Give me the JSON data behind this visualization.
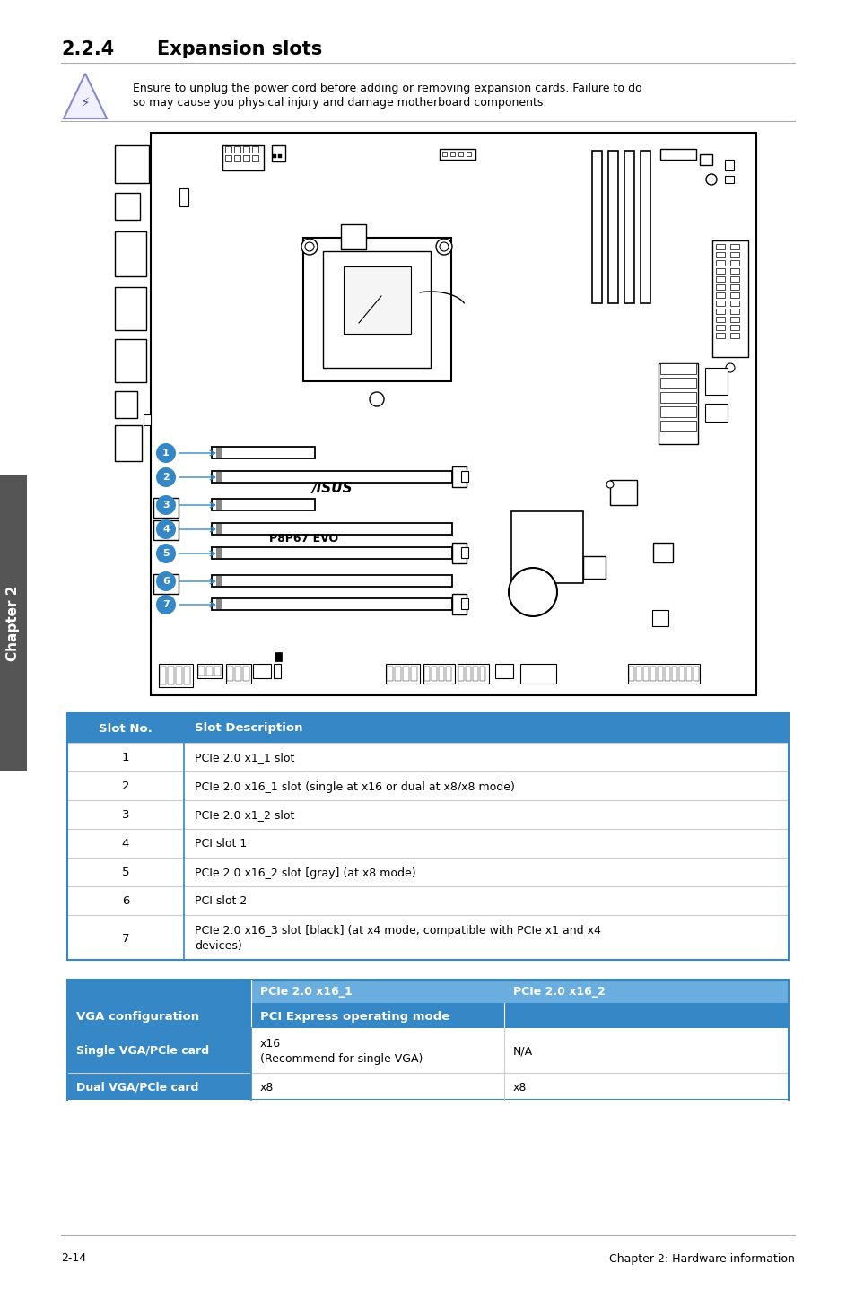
{
  "title_section": "2.2.4",
  "title_text": "Expansion slots",
  "warning_text_line1": "Ensure to unplug the power cord before adding or removing expansion cards. Failure to do",
  "warning_text_line2": "so may cause you physical injury and damage motherboard components.",
  "slot_table_header": [
    "Slot No.",
    "Slot Description"
  ],
  "slot_rows": [
    [
      "1",
      "PCIe 2.0 x1_1 slot"
    ],
    [
      "2",
      "PCIe 2.0 x16_1 slot (single at x16 or dual at x8/x8 mode)"
    ],
    [
      "3",
      "PCIe 2.0 x1_2 slot"
    ],
    [
      "4",
      "PCI slot 1"
    ],
    [
      "5",
      "PCIe 2.0 x16_2 slot [gray] (at x8 mode)"
    ],
    [
      "6",
      "PCI slot 2"
    ],
    [
      "7",
      "PCIe 2.0 x16_3 slot [black] (at x4 mode, compatible with PCIe x1 and x4\ndevices)"
    ]
  ],
  "vga_header_col1": "VGA configuration",
  "vga_header_col2": "PCI Express operating mode",
  "vga_subheader": [
    "PCIe 2.0 x16_1",
    "PCIe 2.0 x16_2"
  ],
  "vga_rows": [
    [
      "Single VGA/PCle card",
      "x16\n(Recommend for single VGA)",
      "N/A"
    ],
    [
      "Dual VGA/PCle card",
      "x8",
      "x8"
    ]
  ],
  "blue_header": "#3588c5",
  "blue_subheader": "#6aaee0",
  "table_border": "#3588c5",
  "row_divider": "#cccccc",
  "sidebar_bg": "#555555",
  "footer_left": "2-14",
  "footer_right": "Chapter 2: Hardware information",
  "chapter_sidebar": "Chapter 2"
}
